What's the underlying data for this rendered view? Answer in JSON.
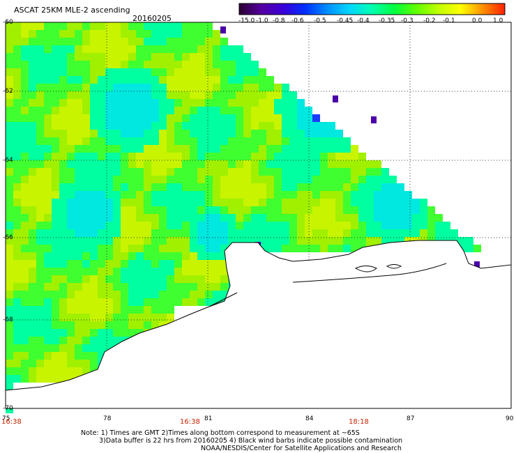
{
  "header": {
    "product": "ASCAT 25KM MLE-2 ascending",
    "date": "20160205"
  },
  "colorbar": {
    "labels": [
      "-15.0",
      "-1.0",
      "-0.8",
      "-0.6",
      "-0.5",
      "-0.45",
      "-0.4",
      "-0.35",
      "-0.3",
      "-0.2",
      "-0.1",
      "0.0",
      "1.0"
    ],
    "colors": [
      "#2a0030",
      "#5500a0",
      "#3a00d8",
      "#0030ff",
      "#0090ff",
      "#00d8ff",
      "#00ffb0",
      "#00ff40",
      "#60ff00",
      "#c0ff00",
      "#ffff00",
      "#ff9000",
      "#ff2000"
    ]
  },
  "axes": {
    "lat_labels": [
      "-60",
      "-62",
      "-64",
      "-66",
      "-68",
      "-70"
    ],
    "lon_labels": [
      "75",
      "78",
      "81",
      "84",
      "87",
      "90"
    ],
    "time_labels": [
      "16:38",
      "16:38",
      "18:18"
    ]
  },
  "map": {
    "lon_range": [
      75,
      90
    ],
    "lat_range": [
      -70,
      -60
    ],
    "field_colors": {
      "low_dark": "#4b00a8",
      "low_blue": "#1a3cff",
      "cyan": "#00e8e0",
      "aqua": "#00ffa0",
      "green": "#40ff30",
      "lime": "#a0f000",
      "yellowgreen": "#c8f400"
    },
    "coast_color": "#000000"
  },
  "footer": {
    "line1": "Note: 1) Times are GMT 2)Times along bottom correspond to measurement at ~65S",
    "line2": "3)Data buffer is 22 hrs from 20160205 4) Black wind barbs indicate possible contamination",
    "line3": "NOAA/NESDIS/Center for Satellite Applications and Research"
  }
}
